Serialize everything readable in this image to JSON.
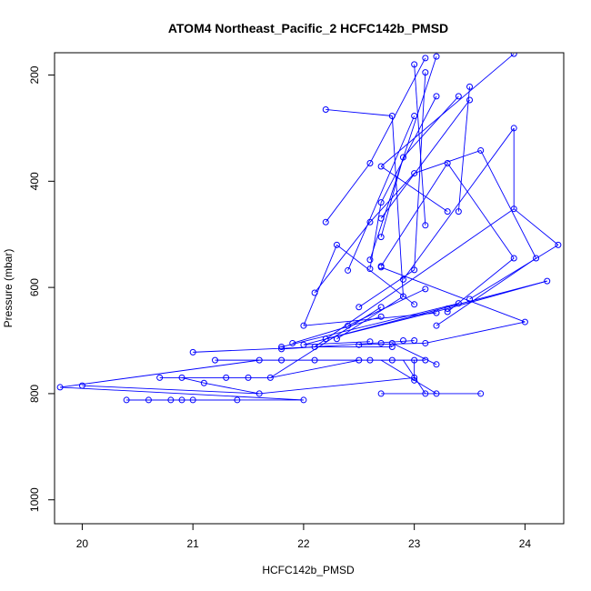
{
  "chart_data": {
    "type": "line",
    "title": "ATOM4 Northeast_Pacific_2 HCFC142b_PMSD",
    "xlabel": "HCFC142b_PMSD",
    "ylabel": "Pressure (mbar)",
    "xlim": [
      19.75,
      24.35
    ],
    "ylim": [
      1045,
      158
    ],
    "y_reversed": true,
    "xticks": [
      20,
      21,
      22,
      23,
      24
    ],
    "yticks": [
      200,
      400,
      600,
      800,
      1000
    ],
    "grid": false,
    "legend": "none",
    "series_color": "#0000ff",
    "marker": "open-circle",
    "points": [
      [
        19.8,
        788
      ],
      [
        20.0,
        785
      ],
      [
        20.4,
        812
      ],
      [
        20.6,
        812
      ],
      [
        20.8,
        812
      ],
      [
        20.9,
        812
      ],
      [
        21.0,
        812
      ],
      [
        21.4,
        812
      ],
      [
        22.0,
        812
      ],
      [
        20.7,
        770
      ],
      [
        20.9,
        770
      ],
      [
        21.3,
        770
      ],
      [
        21.5,
        770
      ],
      [
        21.7,
        770
      ],
      [
        21.1,
        780
      ],
      [
        21.6,
        800
      ],
      [
        21.0,
        722
      ],
      [
        21.2,
        737
      ],
      [
        21.6,
        737
      ],
      [
        21.8,
        737
      ],
      [
        22.1,
        737
      ],
      [
        22.5,
        737
      ],
      [
        22.6,
        737
      ],
      [
        22.8,
        737
      ],
      [
        23.0,
        737
      ],
      [
        23.1,
        737
      ],
      [
        21.8,
        716
      ],
      [
        21.8,
        712
      ],
      [
        21.9,
        705
      ],
      [
        22.0,
        708
      ],
      [
        22.1,
        712
      ],
      [
        22.2,
        697
      ],
      [
        22.3,
        697
      ],
      [
        22.5,
        708
      ],
      [
        22.7,
        705
      ],
      [
        22.8,
        705
      ],
      [
        22.8,
        712
      ],
      [
        22.9,
        700
      ],
      [
        23.0,
        700
      ],
      [
        23.1,
        705
      ],
      [
        22.0,
        672
      ],
      [
        22.4,
        672
      ],
      [
        22.5,
        637
      ],
      [
        22.6,
        702
      ],
      [
        22.7,
        655
      ],
      [
        22.7,
        637
      ],
      [
        23.0,
        632
      ],
      [
        23.1,
        603
      ],
      [
        23.2,
        648
      ],
      [
        23.2,
        672
      ],
      [
        23.3,
        640
      ],
      [
        23.3,
        646
      ],
      [
        23.4,
        630
      ],
      [
        23.5,
        622
      ],
      [
        22.1,
        610
      ],
      [
        22.4,
        568
      ],
      [
        22.6,
        565
      ],
      [
        22.6,
        548
      ],
      [
        22.7,
        560
      ],
      [
        22.7,
        562
      ],
      [
        22.9,
        585
      ],
      [
        22.9,
        617
      ],
      [
        23.0,
        567
      ],
      [
        22.2,
        477
      ],
      [
        22.3,
        520
      ],
      [
        22.6,
        477
      ],
      [
        22.7,
        505
      ],
      [
        22.7,
        470
      ],
      [
        22.7,
        440
      ],
      [
        23.1,
        483
      ],
      [
        23.3,
        457
      ],
      [
        23.4,
        457
      ],
      [
        22.2,
        265
      ],
      [
        22.6,
        366
      ],
      [
        22.7,
        372
      ],
      [
        22.9,
        355
      ],
      [
        23.0,
        385
      ],
      [
        23.3,
        366
      ],
      [
        23.6,
        342
      ],
      [
        22.8,
        277
      ],
      [
        23.0,
        277
      ],
      [
        23.2,
        240
      ],
      [
        23.4,
        240
      ],
      [
        23.5,
        222
      ],
      [
        23.5,
        247
      ],
      [
        23.1,
        195
      ],
      [
        23.0,
        180
      ],
      [
        23.2,
        165
      ],
      [
        23.1,
        168
      ],
      [
        23.9,
        160
      ],
      [
        23.9,
        300
      ],
      [
        23.9,
        452
      ],
      [
        23.9,
        545
      ],
      [
        24.0,
        665
      ],
      [
        24.1,
        545
      ],
      [
        24.2,
        588
      ],
      [
        24.3,
        520
      ],
      [
        22.7,
        800
      ],
      [
        23.1,
        800
      ],
      [
        23.2,
        800
      ],
      [
        23.6,
        800
      ],
      [
        23.0,
        770
      ],
      [
        23.0,
        775
      ],
      [
        23.2,
        745
      ]
    ],
    "segments": [
      [
        [
          22.0,
          812
        ],
        [
          20.4,
          812
        ]
      ],
      [
        [
          20.4,
          812
        ],
        [
          21.0,
          812
        ]
      ],
      [
        [
          21.0,
          812
        ],
        [
          21.4,
          812
        ]
      ],
      [
        [
          19.8,
          788
        ],
        [
          21.6,
          737
        ]
      ],
      [
        [
          19.8,
          788
        ],
        [
          22.0,
          812
        ]
      ],
      [
        [
          20.7,
          770
        ],
        [
          21.7,
          770
        ]
      ],
      [
        [
          21.7,
          770
        ],
        [
          22.5,
          737
        ]
      ],
      [
        [
          21.1,
          780
        ],
        [
          21.6,
          800
        ]
      ],
      [
        [
          21.6,
          800
        ],
        [
          23.0,
          770
        ]
      ],
      [
        [
          21.1,
          780
        ],
        [
          20.9,
          770
        ]
      ],
      [
        [
          21.6,
          800
        ],
        [
          20.0,
          785
        ]
      ],
      [
        [
          21.2,
          737
        ],
        [
          23.1,
          737
        ]
      ],
      [
        [
          21.0,
          722
        ],
        [
          22.1,
          712
        ]
      ],
      [
        [
          22.1,
          712
        ],
        [
          22.8,
          712
        ]
      ],
      [
        [
          21.8,
          716
        ],
        [
          23.0,
          700
        ]
      ],
      [
        [
          22.0,
          708
        ],
        [
          22.6,
          702
        ]
      ],
      [
        [
          21.9,
          705
        ],
        [
          22.7,
          655
        ]
      ],
      [
        [
          21.8,
          712
        ],
        [
          23.4,
          630
        ]
      ],
      [
        [
          22.0,
          708
        ],
        [
          24.2,
          588
        ]
      ],
      [
        [
          22.1,
          712
        ],
        [
          23.9,
          452
        ]
      ],
      [
        [
          21.7,
          770
        ],
        [
          22.7,
          637
        ]
      ],
      [
        [
          22.3,
          697
        ],
        [
          22.9,
          617
        ]
      ],
      [
        [
          22.2,
          697
        ],
        [
          23.3,
          640
        ]
      ],
      [
        [
          22.0,
          672
        ],
        [
          23.2,
          648
        ]
      ],
      [
        [
          22.4,
          672
        ],
        [
          23.1,
          603
        ]
      ],
      [
        [
          22.5,
          637
        ],
        [
          23.0,
          567
        ]
      ],
      [
        [
          22.1,
          610
        ],
        [
          22.6,
          477
        ]
      ],
      [
        [
          22.0,
          672
        ],
        [
          22.3,
          520
        ]
      ],
      [
        [
          22.3,
          520
        ],
        [
          23.0,
          632
        ]
      ],
      [
        [
          22.4,
          568
        ],
        [
          23.0,
          277
        ]
      ],
      [
        [
          22.6,
          565
        ],
        [
          22.7,
          440
        ]
      ],
      [
        [
          22.6,
          548
        ],
        [
          23.2,
          165
        ]
      ],
      [
        [
          22.7,
          560
        ],
        [
          23.3,
          366
        ]
      ],
      [
        [
          22.7,
          562
        ],
        [
          24.0,
          665
        ]
      ],
      [
        [
          22.9,
          585
        ],
        [
          23.9,
          300
        ]
      ],
      [
        [
          22.9,
          617
        ],
        [
          22.8,
          277
        ]
      ],
      [
        [
          23.0,
          567
        ],
        [
          23.1,
          195
        ]
      ],
      [
        [
          23.1,
          483
        ],
        [
          23.0,
          180
        ]
      ],
      [
        [
          23.3,
          457
        ],
        [
          22.7,
          372
        ]
      ],
      [
        [
          23.4,
          457
        ],
        [
          23.5,
          222
        ]
      ],
      [
        [
          22.7,
          505
        ],
        [
          22.9,
          355
        ]
      ],
      [
        [
          22.7,
          470
        ],
        [
          23.5,
          247
        ]
      ],
      [
        [
          22.7,
          440
        ],
        [
          23.2,
          240
        ]
      ],
      [
        [
          22.6,
          477
        ],
        [
          23.0,
          385
        ]
      ],
      [
        [
          22.2,
          477
        ],
        [
          22.6,
          366
        ]
      ],
      [
        [
          22.2,
          265
        ],
        [
          22.8,
          277
        ]
      ],
      [
        [
          22.6,
          366
        ],
        [
          23.1,
          168
        ]
      ],
      [
        [
          22.7,
          372
        ],
        [
          23.9,
          160
        ]
      ],
      [
        [
          22.9,
          355
        ],
        [
          23.4,
          240
        ]
      ],
      [
        [
          23.0,
          385
        ],
        [
          23.6,
          342
        ]
      ],
      [
        [
          23.3,
          366
        ],
        [
          23.9,
          545
        ]
      ],
      [
        [
          23.6,
          342
        ],
        [
          24.1,
          545
        ]
      ],
      [
        [
          23.9,
          300
        ],
        [
          23.9,
          452
        ]
      ],
      [
        [
          23.9,
          452
        ],
        [
          24.3,
          520
        ]
      ],
      [
        [
          24.3,
          520
        ],
        [
          23.5,
          622
        ]
      ],
      [
        [
          24.1,
          545
        ],
        [
          23.2,
          672
        ]
      ],
      [
        [
          23.9,
          545
        ],
        [
          23.3,
          646
        ]
      ],
      [
        [
          24.0,
          665
        ],
        [
          23.1,
          705
        ]
      ],
      [
        [
          24.2,
          588
        ],
        [
          23.3,
          640
        ]
      ],
      [
        [
          23.2,
          745
        ],
        [
          22.8,
          705
        ]
      ],
      [
        [
          22.7,
          800
        ],
        [
          23.6,
          800
        ]
      ],
      [
        [
          23.1,
          800
        ],
        [
          22.9,
          737
        ]
      ],
      [
        [
          23.2,
          800
        ],
        [
          22.7,
          737
        ]
      ],
      [
        [
          23.0,
          775
        ],
        [
          23.0,
          737
        ]
      ],
      [
        [
          22.5,
          708
        ],
        [
          23.1,
          705
        ]
      ]
    ]
  }
}
